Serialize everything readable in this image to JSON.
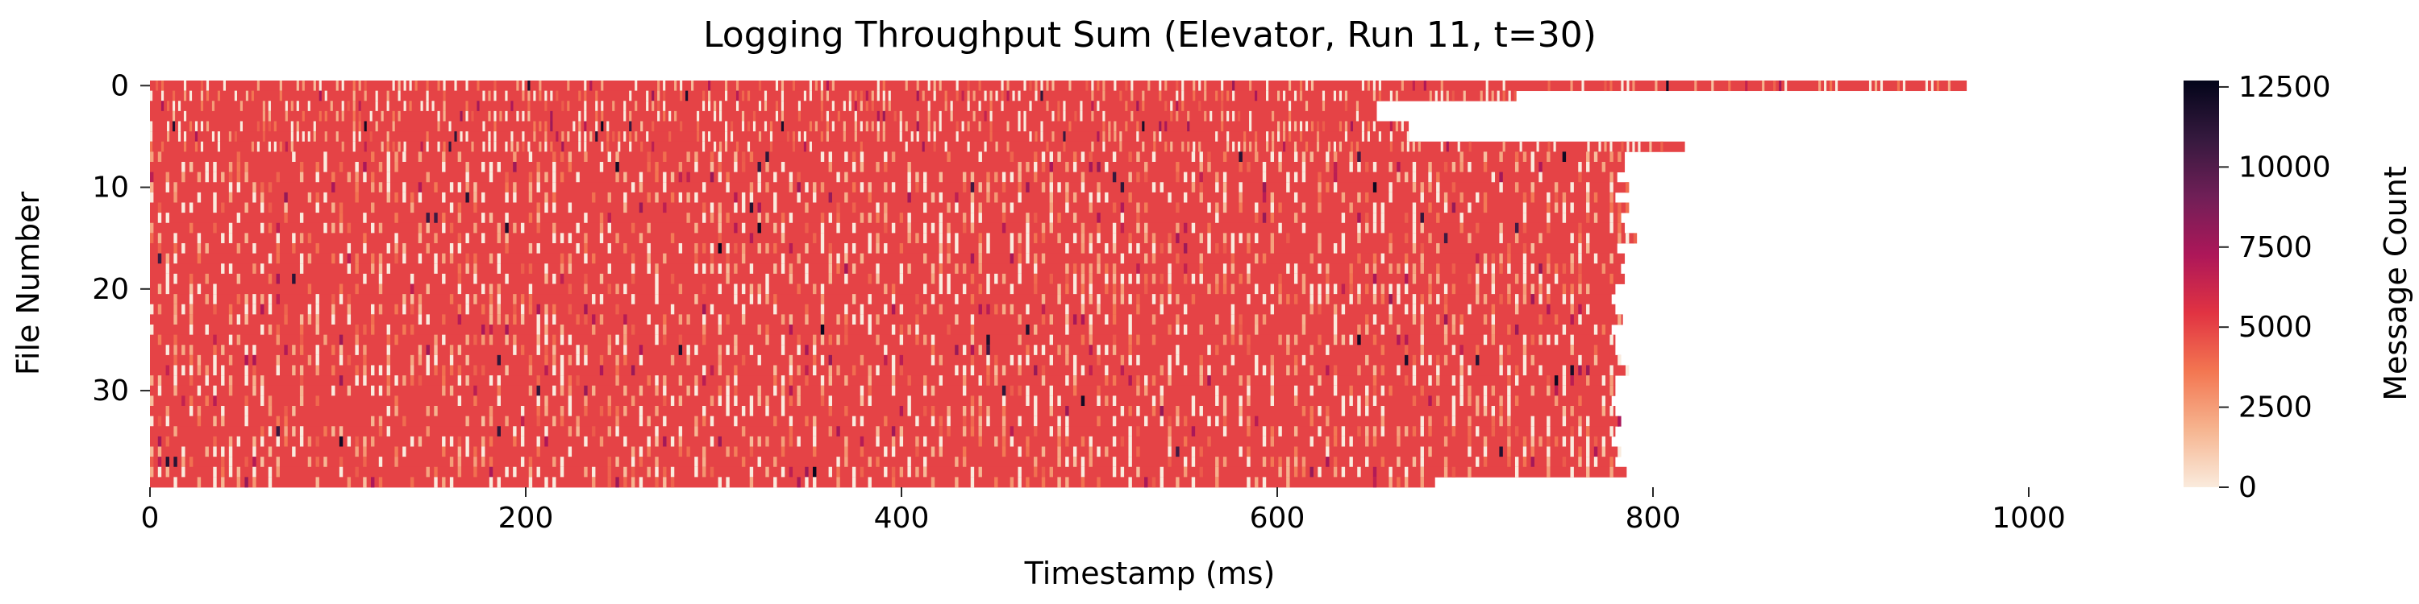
{
  "chart_data": {
    "type": "heatmap",
    "title": "Logging Throughput Sum (Elevator, Run 11, t=30)",
    "xlabel": "Timestamp (ms)",
    "ylabel": "File Number",
    "xlim": [
      0,
      1000
    ],
    "ylim": [
      0,
      39
    ],
    "x_ticks": [
      "0",
      "200",
      "400",
      "600",
      "800",
      "1000"
    ],
    "y_ticks": [
      "0",
      "10",
      "20",
      "30"
    ],
    "colorbar": {
      "label": "Message Count",
      "range": [
        0,
        12700
      ],
      "ticks": [
        "0",
        "2500",
        "5000",
        "7500",
        "10000",
        "12500"
      ],
      "colormap": "rocket_r",
      "colors": [
        "#faebdd",
        "#f6b48f",
        "#f37651",
        "#e13342",
        "#ad1759",
        "#701f57",
        "#35193e",
        "#03051a"
      ]
    },
    "grid": false,
    "typical_value": 5000,
    "row_end_ms": [
      967,
      727,
      653,
      653,
      670,
      670,
      817,
      785,
      785,
      781,
      787,
      780,
      787,
      783,
      785,
      790,
      781,
      785,
      783,
      785,
      780,
      778,
      780,
      784,
      778,
      780,
      780,
      783,
      787,
      780,
      780,
      778,
      780,
      782,
      780,
      778,
      782,
      780,
      786,
      684
    ]
  }
}
